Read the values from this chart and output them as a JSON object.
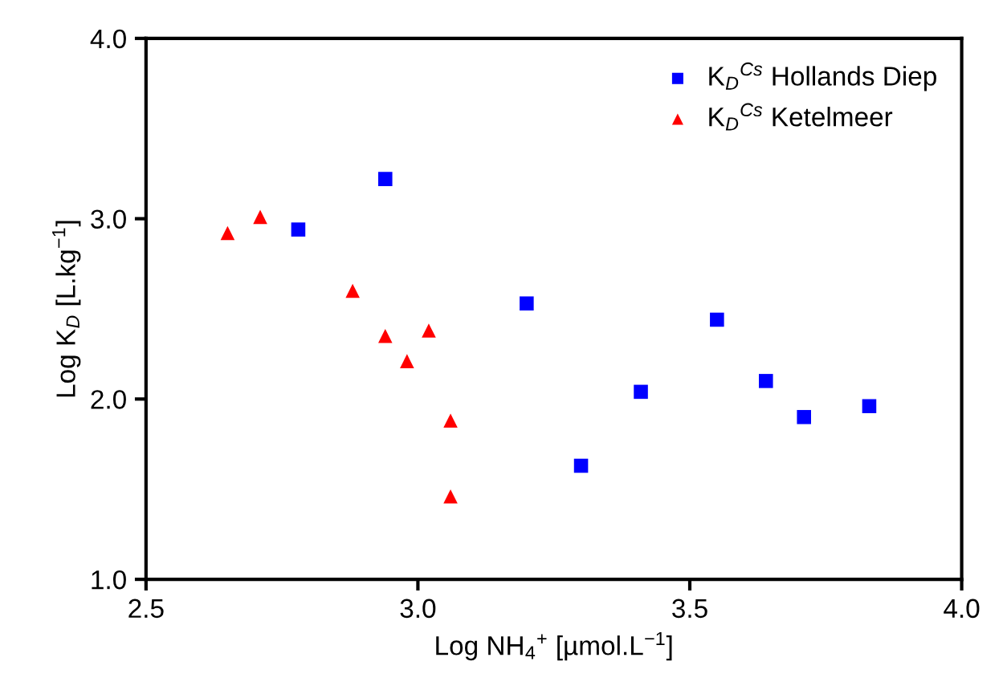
{
  "chart_data": {
    "type": "scatter",
    "xlabel": "Log NH$_{4}$$^{+}$ [µmol.L$^{−1}$]",
    "ylabel": "Log K$_{D}$ [L.kg$^{−1}$]",
    "xlim": [
      2.5,
      4.0
    ],
    "xticks": [
      {
        "value": 2.5,
        "label": "2.5"
      },
      {
        "value": 3.0,
        "label": "3.0"
      },
      {
        "value": 3.5,
        "label": "3.5"
      },
      {
        "value": 4.0,
        "label": "4.0"
      }
    ],
    "ylim": [
      1.0,
      4.0
    ],
    "yticks": [
      {
        "value": 1.0,
        "label": "1.0"
      },
      {
        "value": 2.0,
        "label": "2.0"
      },
      {
        "value": 3.0,
        "label": "3.0"
      },
      {
        "value": 4.0,
        "label": "4.0"
      }
    ],
    "grid": false,
    "legend": "top right",
    "series": [
      {
        "name": "K$_{D}$$^{Cs}$ Hollands Diep",
        "color": "#0000ff",
        "marker": "square",
        "x": [
          2.78,
          2.94,
          3.2,
          3.3,
          3.41,
          3.55,
          3.64,
          3.71,
          3.83
        ],
        "values": [
          2.94,
          3.22,
          2.53,
          1.63,
          2.04,
          2.44,
          2.1,
          1.9,
          1.96
        ]
      },
      {
        "name": "K$_{D}$$^{Cs}$ Ketelmeer",
        "color": "#ff0000",
        "marker": "triangle",
        "x": [
          2.65,
          2.71,
          2.88,
          2.94,
          2.98,
          3.02,
          3.06,
          3.06
        ],
        "values": [
          2.92,
          3.01,
          2.6,
          2.35,
          2.21,
          2.38,
          1.88,
          1.46
        ]
      }
    ]
  }
}
